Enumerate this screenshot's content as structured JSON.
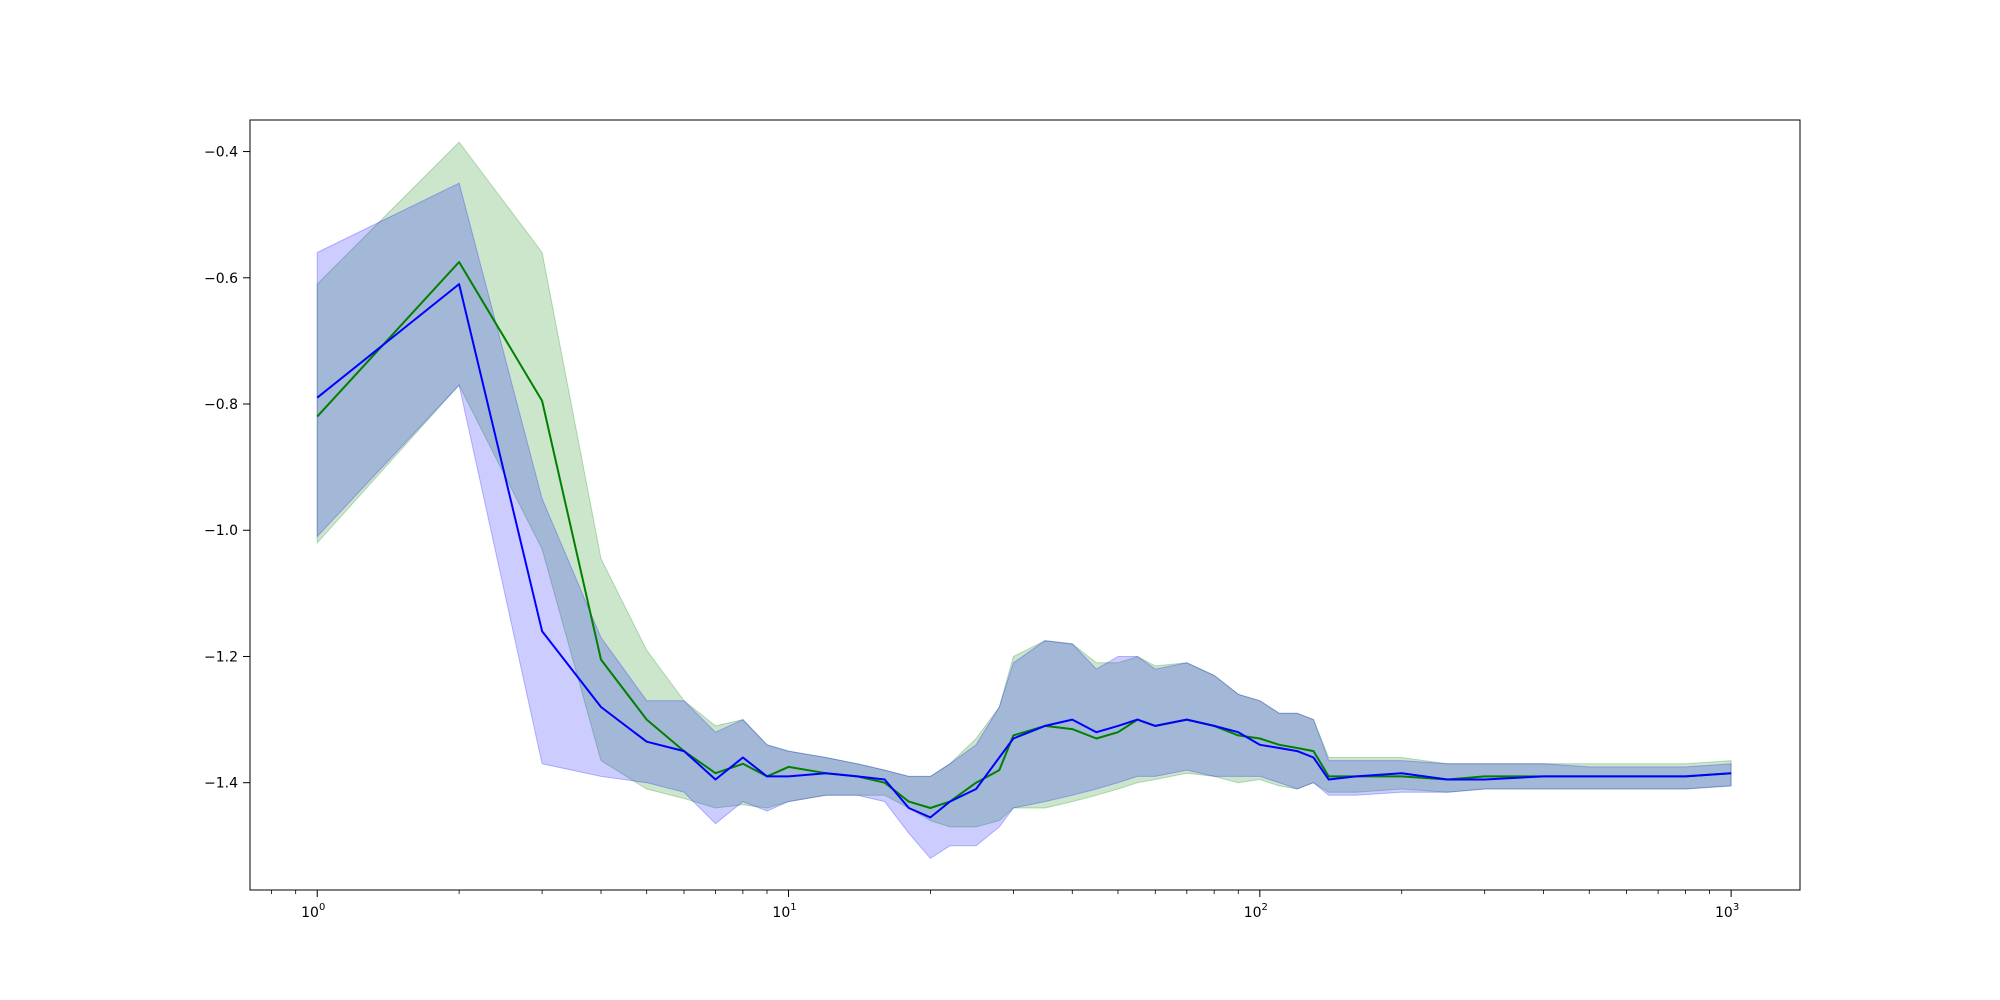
{
  "chart_data": {
    "type": "line",
    "xscale": "log",
    "xlim": [
      0.72,
      1400
    ],
    "ylim": [
      -1.57,
      -0.35
    ],
    "grid": false,
    "legend": "none",
    "x_ticks": [
      {
        "value": 1,
        "label": "10",
        "exp": "0"
      },
      {
        "value": 10,
        "label": "10",
        "exp": "1"
      },
      {
        "value": 100,
        "label": "10",
        "exp": "2"
      },
      {
        "value": 1000,
        "label": "10",
        "exp": "3"
      }
    ],
    "y_ticks": [
      {
        "value": -0.4,
        "label": "−0.4"
      },
      {
        "value": -0.6,
        "label": "−0.6"
      },
      {
        "value": -0.8,
        "label": "−0.8"
      },
      {
        "value": -1.0,
        "label": "−1.0"
      },
      {
        "value": -1.2,
        "label": "−1.2"
      },
      {
        "value": -1.4,
        "label": "−1.4"
      }
    ],
    "series": [
      {
        "color": "#008000",
        "band_color": "#008000",
        "x": [
          1,
          2,
          3,
          4,
          5,
          6,
          7,
          8,
          9,
          10,
          12,
          14,
          16,
          18,
          20,
          22,
          25,
          28,
          30,
          35,
          40,
          45,
          50,
          55,
          60,
          70,
          80,
          90,
          100,
          110,
          120,
          130,
          140,
          160,
          200,
          250,
          300,
          400,
          500,
          600,
          700,
          800,
          1000
        ],
        "y": [
          -0.82,
          -0.575,
          -0.795,
          -1.205,
          -1.3,
          -1.35,
          -1.385,
          -1.37,
          -1.39,
          -1.375,
          -1.385,
          -1.39,
          -1.4,
          -1.43,
          -1.44,
          -1.43,
          -1.4,
          -1.38,
          -1.325,
          -1.31,
          -1.315,
          -1.33,
          -1.32,
          -1.3,
          -1.31,
          -1.3,
          -1.31,
          -1.325,
          -1.33,
          -1.34,
          -1.345,
          -1.35,
          -1.39,
          -1.39,
          -1.39,
          -1.395,
          -1.39,
          -1.39,
          -1.39,
          -1.39,
          -1.39,
          -1.39,
          -1.385
        ],
        "upper": [
          -0.61,
          -0.385,
          -0.56,
          -1.045,
          -1.19,
          -1.27,
          -1.31,
          -1.3,
          -1.34,
          -1.35,
          -1.36,
          -1.37,
          -1.38,
          -1.39,
          -1.39,
          -1.37,
          -1.33,
          -1.28,
          -1.2,
          -1.175,
          -1.18,
          -1.21,
          -1.21,
          -1.2,
          -1.215,
          -1.21,
          -1.23,
          -1.26,
          -1.27,
          -1.29,
          -1.29,
          -1.3,
          -1.36,
          -1.36,
          -1.36,
          -1.37,
          -1.37,
          -1.37,
          -1.37,
          -1.37,
          -1.37,
          -1.37,
          -1.365
        ],
        "lower": [
          -1.02,
          -0.77,
          -1.03,
          -1.365,
          -1.41,
          -1.425,
          -1.44,
          -1.435,
          -1.44,
          -1.43,
          -1.42,
          -1.42,
          -1.42,
          -1.44,
          -1.46,
          -1.47,
          -1.47,
          -1.46,
          -1.44,
          -1.44,
          -1.43,
          -1.42,
          -1.41,
          -1.4,
          -1.395,
          -1.385,
          -1.39,
          -1.4,
          -1.395,
          -1.405,
          -1.41,
          -1.4,
          -1.415,
          -1.415,
          -1.41,
          -1.415,
          -1.41,
          -1.41,
          -1.41,
          -1.41,
          -1.41,
          -1.41,
          -1.405
        ]
      },
      {
        "color": "#0000ff",
        "band_color": "#0000ff",
        "x": [
          1,
          2,
          3,
          4,
          5,
          6,
          7,
          8,
          9,
          10,
          12,
          14,
          16,
          18,
          20,
          22,
          25,
          28,
          30,
          35,
          40,
          45,
          50,
          55,
          60,
          70,
          80,
          90,
          100,
          110,
          120,
          130,
          140,
          160,
          200,
          250,
          300,
          400,
          500,
          600,
          700,
          800,
          1000
        ],
        "y": [
          -0.79,
          -0.61,
          -1.16,
          -1.28,
          -1.335,
          -1.35,
          -1.395,
          -1.36,
          -1.39,
          -1.39,
          -1.385,
          -1.39,
          -1.395,
          -1.44,
          -1.455,
          -1.43,
          -1.41,
          -1.36,
          -1.33,
          -1.31,
          -1.3,
          -1.32,
          -1.31,
          -1.3,
          -1.31,
          -1.3,
          -1.31,
          -1.32,
          -1.34,
          -1.345,
          -1.35,
          -1.36,
          -1.395,
          -1.39,
          -1.385,
          -1.395,
          -1.395,
          -1.39,
          -1.39,
          -1.39,
          -1.39,
          -1.39,
          -1.385
        ],
        "upper": [
          -0.56,
          -0.45,
          -0.95,
          -1.17,
          -1.27,
          -1.27,
          -1.32,
          -1.3,
          -1.34,
          -1.35,
          -1.36,
          -1.37,
          -1.38,
          -1.39,
          -1.39,
          -1.37,
          -1.34,
          -1.28,
          -1.21,
          -1.175,
          -1.18,
          -1.22,
          -1.2,
          -1.2,
          -1.22,
          -1.21,
          -1.23,
          -1.26,
          -1.27,
          -1.29,
          -1.29,
          -1.3,
          -1.365,
          -1.365,
          -1.365,
          -1.37,
          -1.37,
          -1.37,
          -1.375,
          -1.375,
          -1.375,
          -1.375,
          -1.37
        ],
        "lower": [
          -1.01,
          -0.77,
          -1.37,
          -1.39,
          -1.4,
          -1.415,
          -1.465,
          -1.43,
          -1.445,
          -1.43,
          -1.42,
          -1.42,
          -1.43,
          -1.48,
          -1.52,
          -1.5,
          -1.5,
          -1.47,
          -1.44,
          -1.43,
          -1.42,
          -1.41,
          -1.4,
          -1.39,
          -1.39,
          -1.38,
          -1.39,
          -1.39,
          -1.39,
          -1.4,
          -1.41,
          -1.4,
          -1.42,
          -1.42,
          -1.415,
          -1.415,
          -1.41,
          -1.41,
          -1.41,
          -1.41,
          -1.41,
          -1.41,
          -1.405
        ]
      }
    ]
  }
}
